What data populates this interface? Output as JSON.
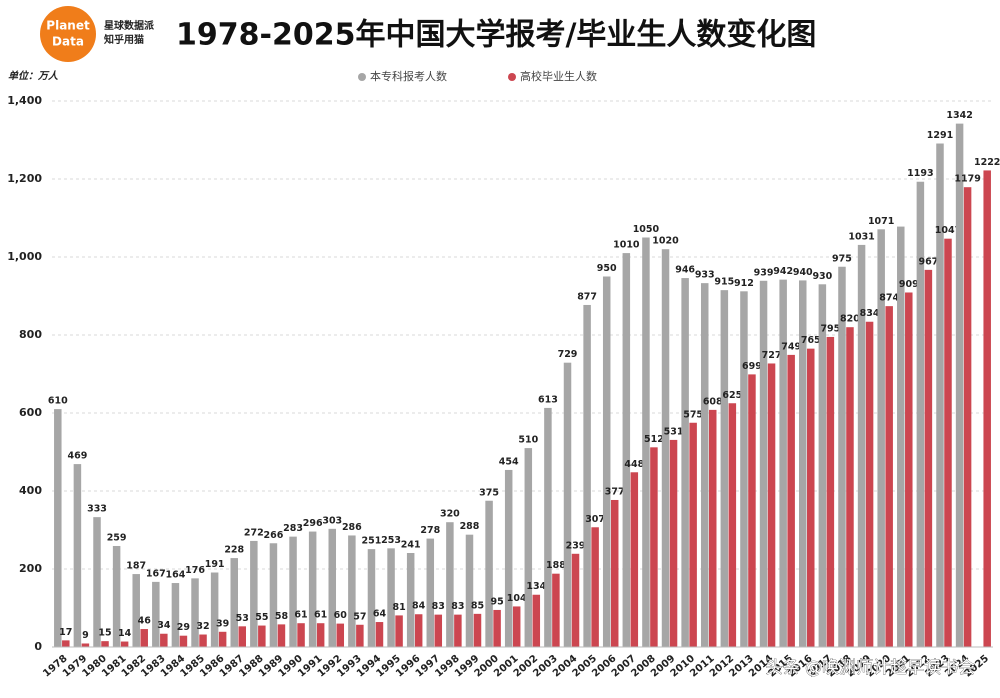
{
  "logo": {
    "line1": "Planet",
    "line2": "Data"
  },
  "brand": {
    "line1": "星球数据派",
    "line2": "知乎用猫"
  },
  "watermark": "头条 @唤渊师计趁早读书会",
  "chart_data": {
    "type": "bar",
    "title": "1978-2025年中国大学报考/毕业生人数变化图",
    "unit": "单位：万人",
    "categories": [
      "1978",
      "1979",
      "1980",
      "1981",
      "1982",
      "1983",
      "1984",
      "1985",
      "1986",
      "1987",
      "1988",
      "1989",
      "1990",
      "1991",
      "1992",
      "1993",
      "1994",
      "1995",
      "1996",
      "1997",
      "1998",
      "1999",
      "2000",
      "2001",
      "2002",
      "2003",
      "2004",
      "2005",
      "2006",
      "2007",
      "2008",
      "2009",
      "2010",
      "2011",
      "2012",
      "2013",
      "2014",
      "2015",
      "2016",
      "2017",
      "2018",
      "2019",
      "2020",
      "2021",
      "2022",
      "2023",
      "2024",
      "2025"
    ],
    "series": [
      {
        "name": "本专科报考人数",
        "color": "#a6a6a6",
        "values": [
          610,
          469,
          333,
          259,
          187,
          167,
          164,
          176,
          191,
          228,
          272,
          266,
          283,
          296,
          303,
          286,
          251,
          253,
          241,
          278,
          320,
          288,
          375,
          454,
          510,
          613,
          729,
          877,
          950,
          1010,
          1050,
          1020,
          946,
          933,
          915,
          912,
          939,
          942,
          940,
          930,
          975,
          1031,
          1071,
          1078,
          1193,
          1291,
          1342,
          null
        ],
        "value_labels": [
          "610",
          "469",
          "333",
          "259",
          "187",
          "167",
          "164",
          "176",
          "191",
          "228",
          "272",
          "266",
          "283",
          "296",
          "303",
          "286",
          "251",
          "253",
          "241",
          "278",
          "320",
          "288",
          "375",
          "454",
          "510",
          "613",
          "729",
          "877",
          "950",
          "1010",
          "1050",
          "1020",
          "946",
          "933",
          "915",
          "912",
          "939",
          "942",
          "940",
          "930",
          "975",
          "1031",
          "1071",
          null,
          "1193",
          "1291",
          "1342",
          null
        ]
      },
      {
        "name": "高校毕业生人数",
        "color": "#cc4650",
        "values": [
          17,
          9,
          15,
          14,
          46,
          34,
          29,
          32,
          39,
          53,
          55,
          58,
          61,
          61,
          60,
          57,
          64,
          81,
          84,
          83,
          83,
          85,
          95,
          104,
          134,
          188,
          239,
          307,
          377,
          448,
          512,
          531,
          575,
          608,
          625,
          699,
          727,
          749,
          765,
          795,
          820,
          834,
          874,
          909,
          967,
          1047,
          1179,
          1222
        ]
      }
    ],
    "ylim": [
      0,
      1400
    ],
    "yticks": [
      0,
      200,
      400,
      600,
      800,
      {
        "value": 1000,
        "label": "1,000"
      },
      {
        "value": 1200,
        "label": "1,200"
      },
      {
        "value": 1400,
        "label": "1,400"
      }
    ],
    "grid": true
  }
}
